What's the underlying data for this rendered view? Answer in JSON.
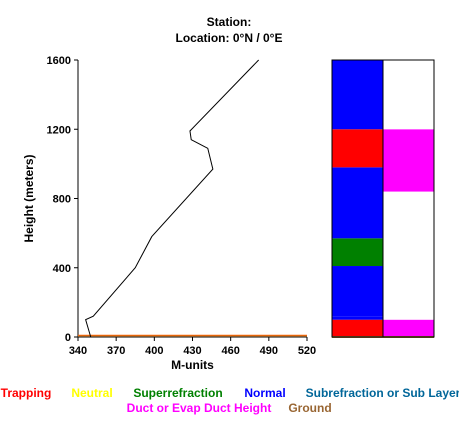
{
  "header": {
    "station_line": "Station:",
    "location_line": "Location:   0°N /   0°E"
  },
  "chart_data": {
    "type": "line",
    "xlabel": "M-units",
    "ylabel": "Height (meters)",
    "xlim": [
      340,
      520
    ],
    "ylim": [
      0,
      1600
    ],
    "x_ticks": [
      "340",
      "370",
      "400",
      "430",
      "460",
      "490",
      "520"
    ],
    "y_ticks": [
      "0",
      "400",
      "800",
      "1200",
      "1600"
    ],
    "profile": {
      "x": [
        350,
        346,
        352,
        385,
        398,
        446,
        442,
        429,
        428,
        482
      ],
      "y": [
        0,
        100,
        120,
        400,
        580,
        970,
        1090,
        1140,
        1190,
        1600
      ]
    },
    "ground_line": {
      "y": 5,
      "color": "#996633"
    },
    "trapping_line": {
      "y": 10,
      "color": "#ff6600"
    },
    "bars": {
      "left": [
        {
          "from": 0,
          "to": 100,
          "color": "#ff0000"
        },
        {
          "from": 100,
          "to": 120,
          "color": "#0000ff"
        },
        {
          "from": 120,
          "to": 410,
          "color": "#0000ff"
        },
        {
          "from": 410,
          "to": 570,
          "color": "#008000"
        },
        {
          "from": 570,
          "to": 980,
          "color": "#0000ff"
        },
        {
          "from": 980,
          "to": 1200,
          "color": "#ff0000"
        },
        {
          "from": 1200,
          "to": 1600,
          "color": "#0000ff"
        }
      ],
      "right": [
        {
          "from": 0,
          "to": 100,
          "color": "#ff00ff"
        },
        {
          "from": 100,
          "to": 840,
          "color": "#ffffff"
        },
        {
          "from": 840,
          "to": 1200,
          "color": "#ff00ff"
        },
        {
          "from": 1200,
          "to": 1600,
          "color": "#ffffff"
        }
      ]
    },
    "legend": [
      {
        "label": "Trapping",
        "color": "#ff0000"
      },
      {
        "label": "Neutral",
        "color": "#ffff00"
      },
      {
        "label": "Superrefraction",
        "color": "#008000"
      },
      {
        "label": "Normal",
        "color": "#0000ff"
      },
      {
        "label": "Subrefraction or Sub Layer",
        "color": "#006699"
      },
      {
        "label": "Duct or Evap Duct Height",
        "color": "#ff00ff"
      },
      {
        "label": "Ground",
        "color": "#996633"
      }
    ]
  }
}
